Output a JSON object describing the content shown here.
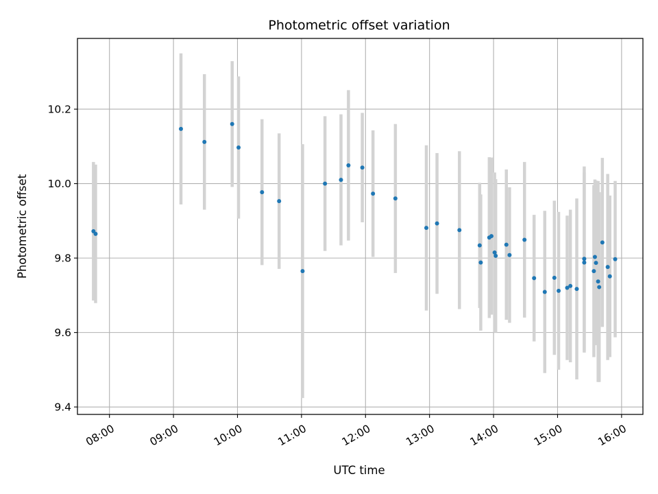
{
  "chart_data": {
    "type": "scatter",
    "title": "Photometric offset variation",
    "xlabel": "UTC time",
    "ylabel": "Photometric offset",
    "grid": true,
    "xlim": [
      "07:30",
      "16:20"
    ],
    "ylim": [
      9.38,
      10.39
    ],
    "xticks": [
      "08:00",
      "09:00",
      "10:00",
      "11:00",
      "12:00",
      "13:00",
      "14:00",
      "15:00",
      "16:00"
    ],
    "yticks": [
      9.4,
      9.6,
      9.8,
      10.0,
      10.2
    ],
    "ytick_labels": [
      "9.4",
      "9.6",
      "9.8",
      "10.0",
      "10.2"
    ],
    "colors": {
      "marker": "#1f77b4",
      "errorbar": "#d3d3d3",
      "grid": "#b0b0b0",
      "axis": "#000000"
    },
    "series": [
      {
        "x": [
          "07:45",
          "07:47",
          "09:07",
          "09:29",
          "09:55",
          "10:01",
          "10:23",
          "10:39",
          "11:01",
          "11:22",
          "11:37",
          "11:44",
          "11:57",
          "12:07",
          "12:28",
          "12:57",
          "13:07",
          "13:28",
          "13:47",
          "13:48",
          "13:56",
          "13:58",
          "14:01",
          "14:02",
          "14:12",
          "14:15",
          "14:29",
          "14:38",
          "14:48",
          "14:57",
          "15:01",
          "15:09",
          "15:12",
          "15:18",
          "15:25",
          "15:25",
          "15:34",
          "15:35",
          "15:36",
          "15:38",
          "15:39",
          "15:42",
          "15:47",
          "15:49",
          "15:54"
        ],
        "y": [
          9.872,
          9.865,
          10.147,
          10.112,
          10.16,
          10.097,
          9.977,
          9.953,
          9.765,
          10.0,
          10.01,
          10.049,
          10.043,
          9.973,
          9.96,
          9.881,
          9.893,
          9.875,
          9.834,
          9.788,
          9.855,
          9.859,
          9.815,
          9.806,
          9.836,
          9.808,
          9.849,
          9.746,
          9.709,
          9.747,
          9.712,
          9.72,
          9.725,
          9.717,
          9.788,
          9.798,
          9.765,
          9.803,
          9.787,
          9.737,
          9.722,
          9.842,
          9.776,
          9.751,
          9.797
        ],
        "yerr": [
          0.186,
          0.186,
          0.203,
          0.182,
          0.169,
          0.191,
          0.196,
          0.182,
          0.341,
          0.181,
          0.176,
          0.202,
          0.147,
          0.17,
          0.2,
          0.222,
          0.189,
          0.212,
          0.168,
          0.183,
          0.216,
          0.211,
          0.215,
          0.206,
          0.202,
          0.182,
          0.209,
          0.17,
          0.218,
          0.207,
          0.212,
          0.194,
          0.205,
          0.243,
          0.242,
          0.248,
          0.231,
          0.208,
          0.221,
          0.27,
          0.255,
          0.227,
          0.25,
          0.217,
          0.21
        ]
      }
    ]
  }
}
